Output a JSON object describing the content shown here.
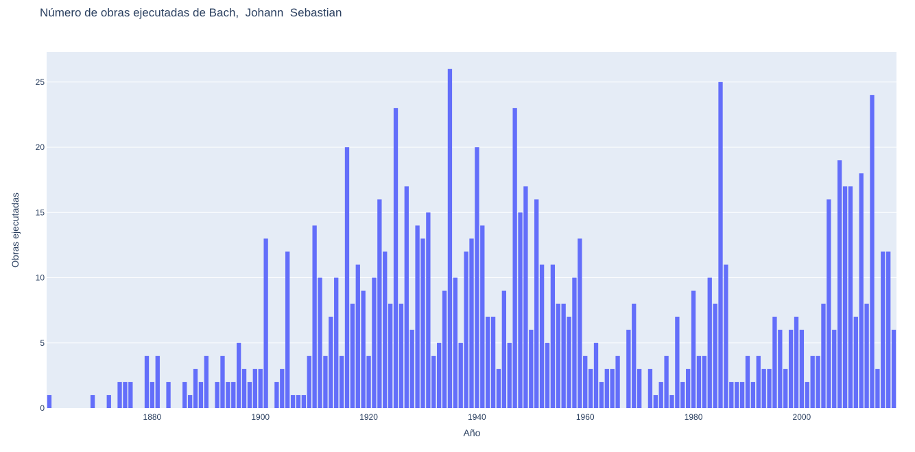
{
  "chart_data": {
    "type": "bar",
    "title": "Número de obras ejecutadas de Bach,  Johann  Sebastian",
    "xlabel": "Año",
    "ylabel": "Obras ejecutadas",
    "xlim": [
      1860.5,
      2017.5
    ],
    "ylim": [
      0,
      27.3
    ],
    "x_ticks": [
      1880,
      1900,
      1920,
      1940,
      1960,
      1980,
      2000
    ],
    "y_ticks": [
      0,
      5,
      10,
      15,
      20,
      25
    ],
    "grid": true,
    "bar_color": "#636efa",
    "plot_bg": "#e5ecf6",
    "x": [
      1861,
      1869,
      1872,
      1874,
      1875,
      1876,
      1879,
      1880,
      1881,
      1883,
      1886,
      1887,
      1888,
      1889,
      1890,
      1892,
      1893,
      1894,
      1895,
      1896,
      1897,
      1898,
      1899,
      1900,
      1901,
      1903,
      1904,
      1905,
      1906,
      1907,
      1908,
      1909,
      1910,
      1911,
      1912,
      1913,
      1914,
      1915,
      1916,
      1917,
      1918,
      1919,
      1920,
      1921,
      1922,
      1923,
      1924,
      1925,
      1926,
      1927,
      1928,
      1929,
      1930,
      1931,
      1932,
      1933,
      1934,
      1935,
      1936,
      1937,
      1938,
      1939,
      1940,
      1941,
      1942,
      1943,
      1944,
      1945,
      1946,
      1947,
      1948,
      1949,
      1950,
      1951,
      1952,
      1953,
      1954,
      1955,
      1956,
      1957,
      1958,
      1959,
      1960,
      1961,
      1962,
      1963,
      1964,
      1965,
      1966,
      1968,
      1969,
      1970,
      1972,
      1973,
      1974,
      1975,
      1976,
      1977,
      1978,
      1979,
      1980,
      1981,
      1982,
      1983,
      1984,
      1985,
      1986,
      1987,
      1988,
      1989,
      1990,
      1991,
      1992,
      1993,
      1994,
      1995,
      1996,
      1997,
      1998,
      1999,
      2000,
      2001,
      2002,
      2003,
      2004,
      2005,
      2006,
      2007,
      2008,
      2009,
      2010,
      2011,
      2012,
      2013,
      2014,
      2015,
      2016,
      2017
    ],
    "values": [
      1,
      1,
      1,
      2,
      2,
      2,
      4,
      2,
      4,
      2,
      2,
      1,
      3,
      2,
      4,
      2,
      4,
      2,
      2,
      5,
      3,
      2,
      3,
      3,
      13,
      2,
      3,
      12,
      1,
      1,
      1,
      4,
      14,
      10,
      4,
      7,
      10,
      4,
      20,
      8,
      11,
      9,
      4,
      10,
      16,
      12,
      8,
      23,
      8,
      17,
      6,
      14,
      13,
      15,
      4,
      5,
      9,
      26,
      10,
      5,
      12,
      13,
      20,
      14,
      7,
      7,
      3,
      9,
      5,
      23,
      15,
      17,
      6,
      16,
      11,
      5,
      11,
      8,
      8,
      7,
      10,
      13,
      4,
      3,
      5,
      2,
      3,
      3,
      4,
      6,
      8,
      3,
      3,
      1,
      2,
      4,
      1,
      7,
      2,
      3,
      9,
      4,
      4,
      10,
      8,
      25,
      11,
      2,
      2,
      2,
      4,
      2,
      4,
      3,
      3,
      7,
      6,
      3,
      6,
      7,
      6,
      2,
      4,
      4,
      8,
      16,
      6,
      19,
      17,
      17,
      7,
      18,
      8,
      24,
      3,
      12,
      12,
      6
    ]
  }
}
